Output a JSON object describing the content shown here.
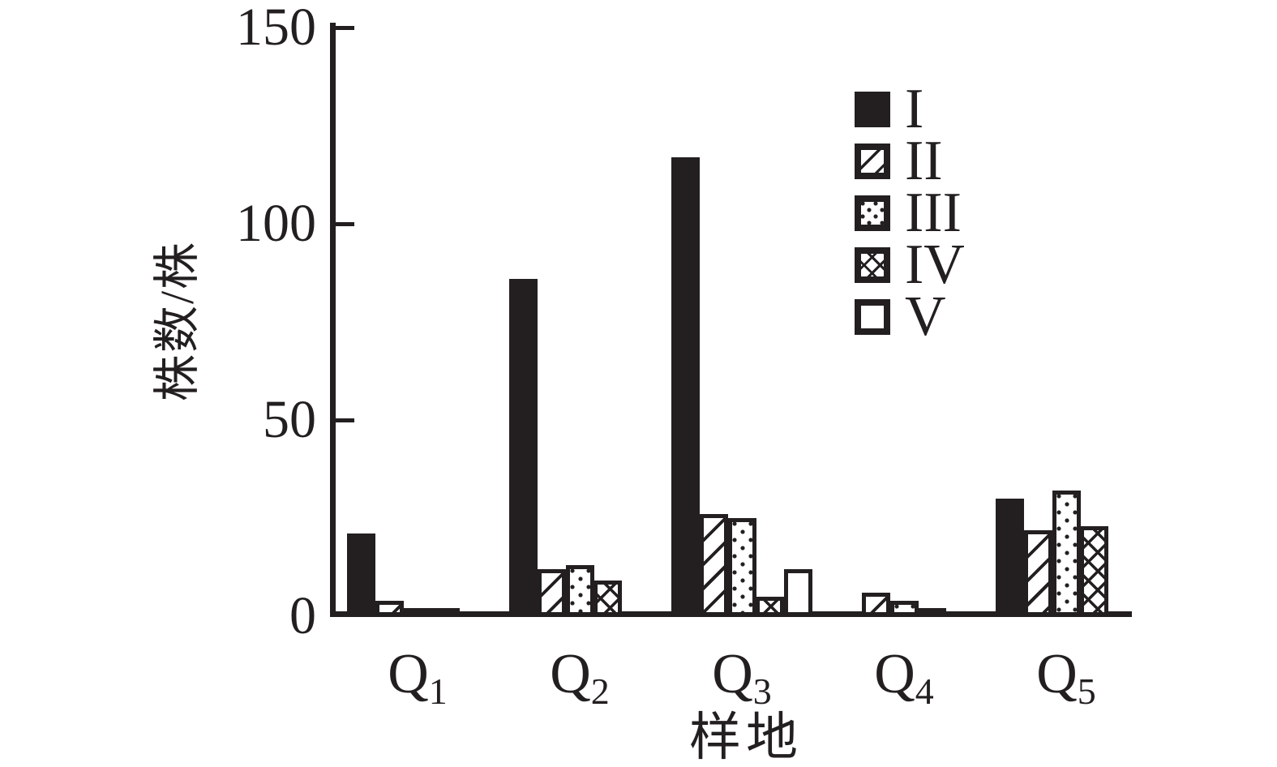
{
  "figure": {
    "background": "#ffffff",
    "ink_color": "#231f20"
  },
  "chart_data": {
    "type": "bar",
    "title": "",
    "xlabel": "样地",
    "ylabel": "株数/株",
    "categories": [
      "Q1",
      "Q2",
      "Q3",
      "Q4",
      "Q5"
    ],
    "category_labels": [
      {
        "base": "Q",
        "sub": "1"
      },
      {
        "base": "Q",
        "sub": "2"
      },
      {
        "base": "Q",
        "sub": "3"
      },
      {
        "base": "Q",
        "sub": "4"
      },
      {
        "base": "Q",
        "sub": "5"
      }
    ],
    "series": [
      {
        "name": "I",
        "pattern": "solid",
        "values": [
          21,
          86,
          117,
          1,
          30
        ]
      },
      {
        "name": "II",
        "pattern": "diag",
        "values": [
          4,
          12,
          26,
          6,
          22
        ]
      },
      {
        "name": "III",
        "pattern": "dots",
        "values": [
          2,
          13,
          25,
          4,
          32
        ]
      },
      {
        "name": "IV",
        "pattern": "cross",
        "values": [
          2,
          9,
          5,
          1,
          23
        ]
      },
      {
        "name": "V",
        "pattern": "open",
        "values": [
          0,
          0,
          12,
          0,
          0
        ]
      }
    ],
    "y_ticks": [
      0,
      50,
      100,
      150
    ],
    "ylim": [
      0,
      150
    ],
    "grid": false,
    "legend_position": "upper right"
  }
}
